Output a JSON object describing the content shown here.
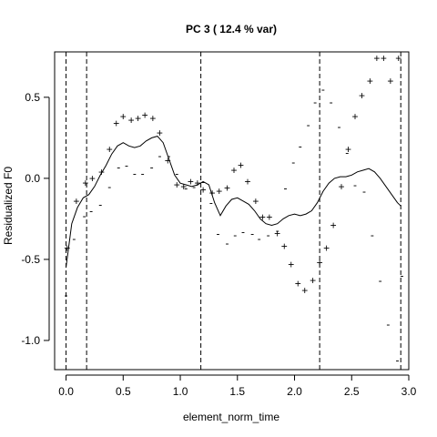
{
  "chart_data": {
    "type": "line",
    "title": "PC 3  ( 12.4 % var)",
    "xlabel": "element_norm_time",
    "ylabel": "Residualized F0",
    "xlim": [
      -0.1,
      3.0
    ],
    "ylim": [
      -1.18,
      0.78
    ],
    "x_ticks": [
      {
        "value": 0.0,
        "label": "0.0"
      },
      {
        "value": 0.5,
        "label": "0.5"
      },
      {
        "value": 1.0,
        "label": "1.0"
      },
      {
        "value": 1.5,
        "label": "1.5"
      },
      {
        "value": 2.0,
        "label": "2.0"
      },
      {
        "value": 2.5,
        "label": "2.5"
      },
      {
        "value": 3.0,
        "label": "3.0"
      }
    ],
    "y_ticks": [
      {
        "value": 0.5,
        "label": "0.5"
      },
      {
        "value": 0.0,
        "label": "0.0"
      },
      {
        "value": -0.5,
        "label": "-0.5"
      },
      {
        "value": -1.0,
        "label": "-1.0"
      }
    ],
    "boundaries": [
      0.0,
      0.18,
      1.18,
      2.22,
      2.93
    ],
    "grid": false,
    "legend": "none",
    "mean_curve": {
      "x": [
        0.0,
        0.05,
        0.1,
        0.15,
        0.2,
        0.25,
        0.3,
        0.35,
        0.4,
        0.45,
        0.5,
        0.55,
        0.6,
        0.65,
        0.7,
        0.75,
        0.8,
        0.85,
        0.9,
        0.95,
        1.0,
        1.05,
        1.1,
        1.15,
        1.2,
        1.25,
        1.3,
        1.35,
        1.4,
        1.45,
        1.5,
        1.55,
        1.6,
        1.65,
        1.7,
        1.75,
        1.8,
        1.85,
        1.9,
        1.95,
        2.0,
        2.05,
        2.1,
        2.15,
        2.2,
        2.25,
        2.3,
        2.35,
        2.4,
        2.45,
        2.5,
        2.55,
        2.6,
        2.65,
        2.7,
        2.75,
        2.8,
        2.85,
        2.9,
        2.93
      ],
      "y": [
        -0.55,
        -0.28,
        -0.18,
        -0.12,
        -0.1,
        -0.05,
        0.02,
        0.08,
        0.15,
        0.2,
        0.22,
        0.2,
        0.19,
        0.2,
        0.23,
        0.25,
        0.26,
        0.22,
        0.12,
        0.02,
        -0.03,
        -0.04,
        -0.05,
        -0.04,
        -0.02,
        -0.04,
        -0.15,
        -0.23,
        -0.17,
        -0.13,
        -0.12,
        -0.14,
        -0.16,
        -0.2,
        -0.25,
        -0.28,
        -0.29,
        -0.28,
        -0.25,
        -0.23,
        -0.22,
        -0.23,
        -0.22,
        -0.2,
        -0.15,
        -0.08,
        -0.03,
        0.0,
        0.01,
        0.01,
        0.02,
        0.04,
        0.05,
        0.06,
        0.04,
        0.0,
        -0.05,
        -0.1,
        -0.15,
        -0.17
      ]
    },
    "plus_series": {
      "marker": "+",
      "x": [
        0.01,
        0.09,
        0.17,
        0.23,
        0.31,
        0.38,
        0.44,
        0.5,
        0.57,
        0.63,
        0.69,
        0.76,
        0.82,
        0.89,
        0.97,
        1.03,
        1.09,
        1.15,
        1.2,
        1.28,
        1.34,
        1.41,
        1.47,
        1.53,
        1.59,
        1.66,
        1.72,
        1.78,
        1.85,
        1.91,
        1.97,
        2.03,
        2.09,
        2.16,
        2.22,
        2.28,
        2.34,
        2.41,
        2.47,
        2.53,
        2.59,
        2.66,
        2.72,
        2.78,
        2.84,
        2.91
      ],
      "y": [
        -0.43,
        -0.14,
        -0.03,
        0.0,
        0.04,
        0.18,
        0.34,
        0.38,
        0.36,
        0.37,
        0.39,
        0.37,
        0.28,
        0.11,
        -0.04,
        -0.05,
        -0.02,
        -0.03,
        -0.07,
        -0.09,
        -0.08,
        -0.06,
        0.05,
        0.08,
        -0.02,
        -0.14,
        -0.24,
        -0.24,
        -0.34,
        -0.42,
        -0.53,
        -0.65,
        -0.69,
        -0.63,
        -0.52,
        -0.43,
        -0.29,
        -0.05,
        0.18,
        0.38,
        0.51,
        0.6,
        0.74,
        0.74,
        0.6,
        0.74
      ]
    },
    "minus_series": {
      "marker": "-",
      "x": [
        0.0,
        0.07,
        0.16,
        0.22,
        0.3,
        0.38,
        0.46,
        0.53,
        0.6,
        0.67,
        0.75,
        0.82,
        0.9,
        0.97,
        1.05,
        1.12,
        1.2,
        1.27,
        1.33,
        1.41,
        1.48,
        1.55,
        1.63,
        1.69,
        1.77,
        1.85,
        1.92,
        1.99,
        2.05,
        2.12,
        2.18,
        2.25,
        2.32,
        2.39,
        2.46,
        2.53,
        2.61,
        2.68,
        2.75,
        2.82,
        2.9,
        2.94
      ],
      "y": [
        -0.72,
        -0.37,
        -0.23,
        -0.2,
        -0.16,
        -0.05,
        0.07,
        0.08,
        0.03,
        0.03,
        0.07,
        0.14,
        0.14,
        0.03,
        -0.06,
        -0.05,
        -0.02,
        -0.15,
        -0.34,
        -0.4,
        -0.35,
        -0.33,
        -0.34,
        -0.37,
        -0.35,
        -0.32,
        -0.06,
        0.1,
        0.2,
        0.33,
        0.47,
        0.55,
        0.47,
        0.32,
        0.16,
        -0.04,
        -0.08,
        -0.35,
        -0.63,
        -0.9,
        -1.12,
        -0.6
      ]
    }
  }
}
